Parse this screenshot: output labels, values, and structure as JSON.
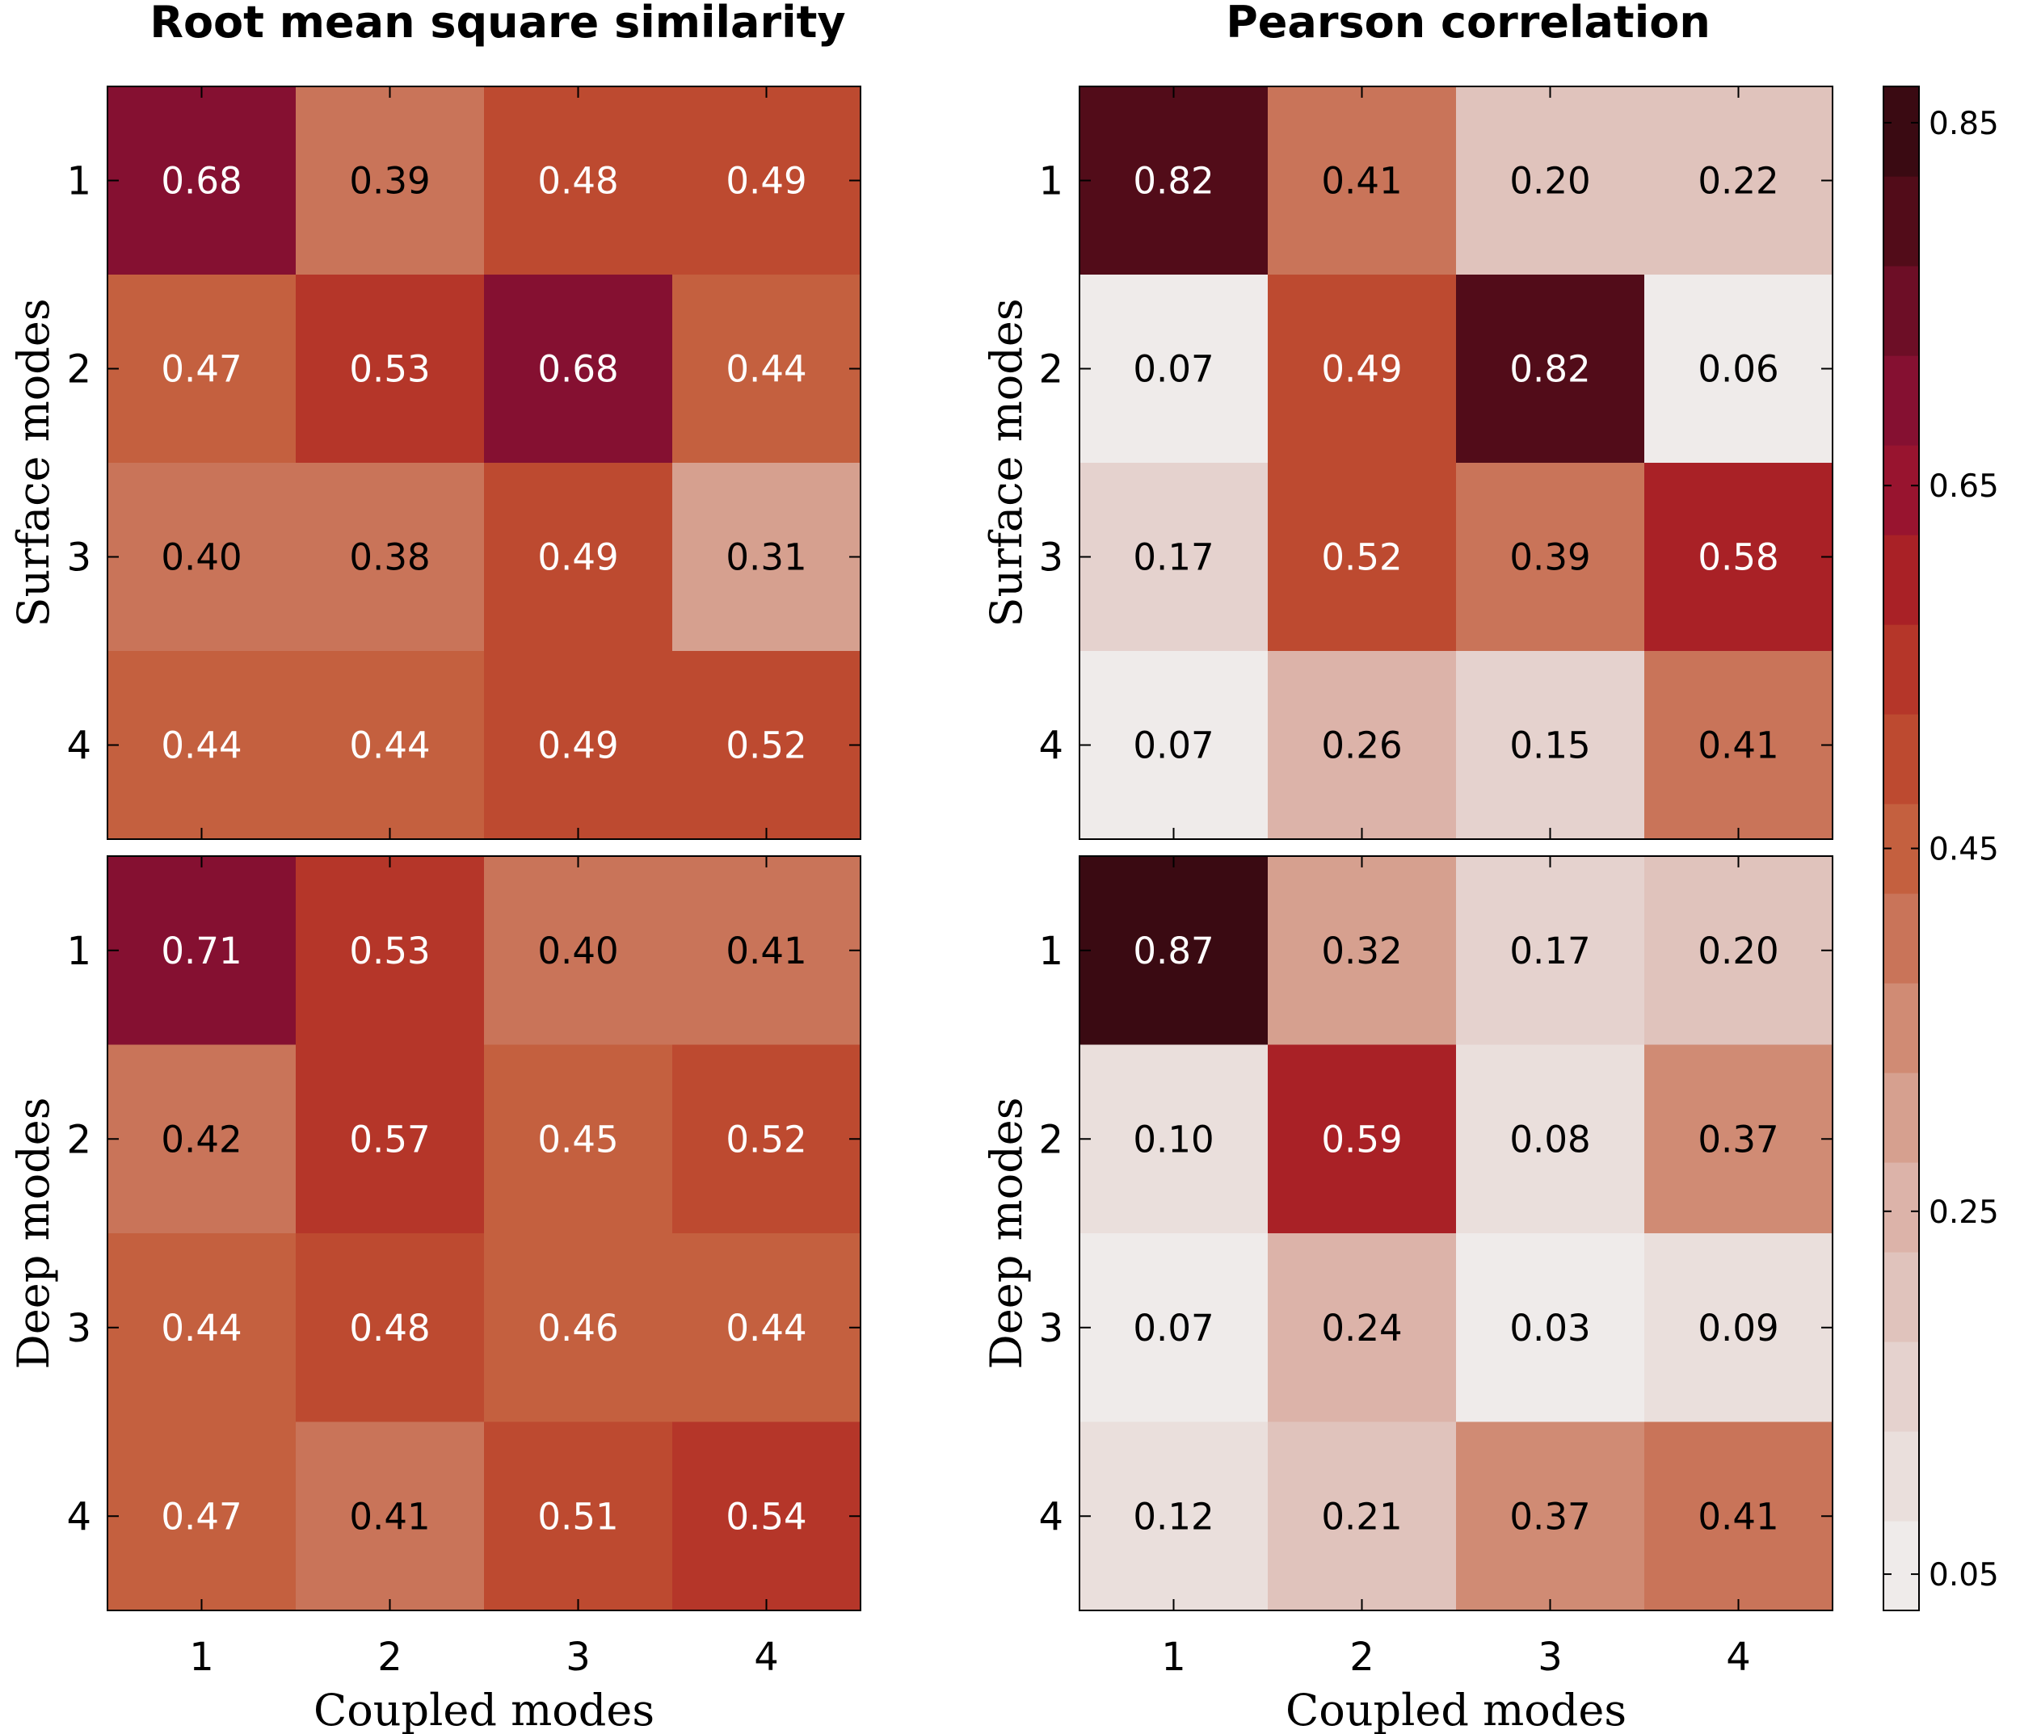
{
  "chart_data": [
    {
      "type": "heatmap",
      "title": "Root mean square similarity",
      "ylabel": "Surface modes",
      "xlabel": "",
      "x_categories": [
        "1",
        "2",
        "3",
        "4"
      ],
      "y_categories": [
        "1",
        "2",
        "3",
        "4"
      ],
      "values": [
        [
          0.68,
          0.39,
          0.48,
          0.49
        ],
        [
          0.47,
          0.53,
          0.68,
          0.44
        ],
        [
          0.4,
          0.38,
          0.49,
          0.31
        ],
        [
          0.44,
          0.44,
          0.49,
          0.52
        ]
      ],
      "labels": [
        [
          "0.68",
          "0.39",
          "0.48",
          "0.49"
        ],
        [
          "0.47",
          "0.53",
          "0.68",
          "0.44"
        ],
        [
          "0.40",
          "0.38",
          "0.49",
          "0.31"
        ],
        [
          "0.44",
          "0.44",
          "0.49",
          "0.52"
        ]
      ]
    },
    {
      "type": "heatmap",
      "title": "Pearson correlation",
      "ylabel": "Surface modes",
      "xlabel": "",
      "x_categories": [
        "1",
        "2",
        "3",
        "4"
      ],
      "y_categories": [
        "1",
        "2",
        "3",
        "4"
      ],
      "values": [
        [
          0.82,
          0.41,
          0.2,
          0.22
        ],
        [
          0.07,
          0.49,
          0.82,
          0.06
        ],
        [
          0.17,
          0.52,
          0.39,
          0.58
        ],
        [
          0.07,
          0.26,
          0.15,
          0.41
        ]
      ],
      "labels": [
        [
          "0.82",
          "0.41",
          "0.20",
          "0.22"
        ],
        [
          "0.07",
          "0.49",
          "0.82",
          "0.06"
        ],
        [
          "0.17",
          "0.52",
          "0.39",
          "0.58"
        ],
        [
          "0.07",
          "0.26",
          "0.15",
          "0.41"
        ]
      ]
    },
    {
      "type": "heatmap",
      "title": "",
      "ylabel": "Deep modes",
      "xlabel": "Coupled modes",
      "x_categories": [
        "1",
        "2",
        "3",
        "4"
      ],
      "y_categories": [
        "1",
        "2",
        "3",
        "4"
      ],
      "values": [
        [
          0.71,
          0.53,
          0.4,
          0.41
        ],
        [
          0.42,
          0.57,
          0.45,
          0.52
        ],
        [
          0.44,
          0.48,
          0.46,
          0.44
        ],
        [
          0.47,
          0.41,
          0.51,
          0.54
        ]
      ],
      "labels": [
        [
          "0.71",
          "0.53",
          "0.40",
          "0.41"
        ],
        [
          "0.42",
          "0.57",
          "0.45",
          "0.52"
        ],
        [
          "0.44",
          "0.48",
          "0.46",
          "0.44"
        ],
        [
          "0.47",
          "0.41",
          "0.51",
          "0.54"
        ]
      ]
    },
    {
      "type": "heatmap",
      "title": "",
      "ylabel": "Deep modes",
      "xlabel": "Coupled modes",
      "x_categories": [
        "1",
        "2",
        "3",
        "4"
      ],
      "y_categories": [
        "1",
        "2",
        "3",
        "4"
      ],
      "values": [
        [
          0.87,
          0.32,
          0.17,
          0.2
        ],
        [
          0.1,
          0.59,
          0.08,
          0.37
        ],
        [
          0.07,
          0.24,
          0.03,
          0.09
        ],
        [
          0.12,
          0.21,
          0.37,
          0.41
        ]
      ],
      "labels": [
        [
          "0.87",
          "0.32",
          "0.17",
          "0.20"
        ],
        [
          "0.10",
          "0.59",
          "0.08",
          "0.37"
        ],
        [
          "0.07",
          "0.24",
          "0.03",
          "0.09"
        ],
        [
          "0.12",
          "0.21",
          "0.37",
          "0.41"
        ]
      ]
    }
  ],
  "colorbar": {
    "range": [
      0.03,
      0.87
    ],
    "tick_values": [
      0.05,
      0.25,
      0.45,
      0.65,
      0.85
    ],
    "tick_labels": [
      "0.05",
      "0.25",
      "0.45",
      "0.65",
      "0.85"
    ],
    "band_colors": [
      "#efebea",
      "#eadfdc",
      "#e5d2ce",
      "#e0c3bc",
      "#dcb3a9",
      "#d6a08f",
      "#d08b74",
      "#c97459",
      "#c4603f",
      "#bd4a30",
      "#b53629",
      "#a92126",
      "#98142f",
      "#851031",
      "#6d0e26",
      "#520c19",
      "#3a0a12"
    ]
  }
}
